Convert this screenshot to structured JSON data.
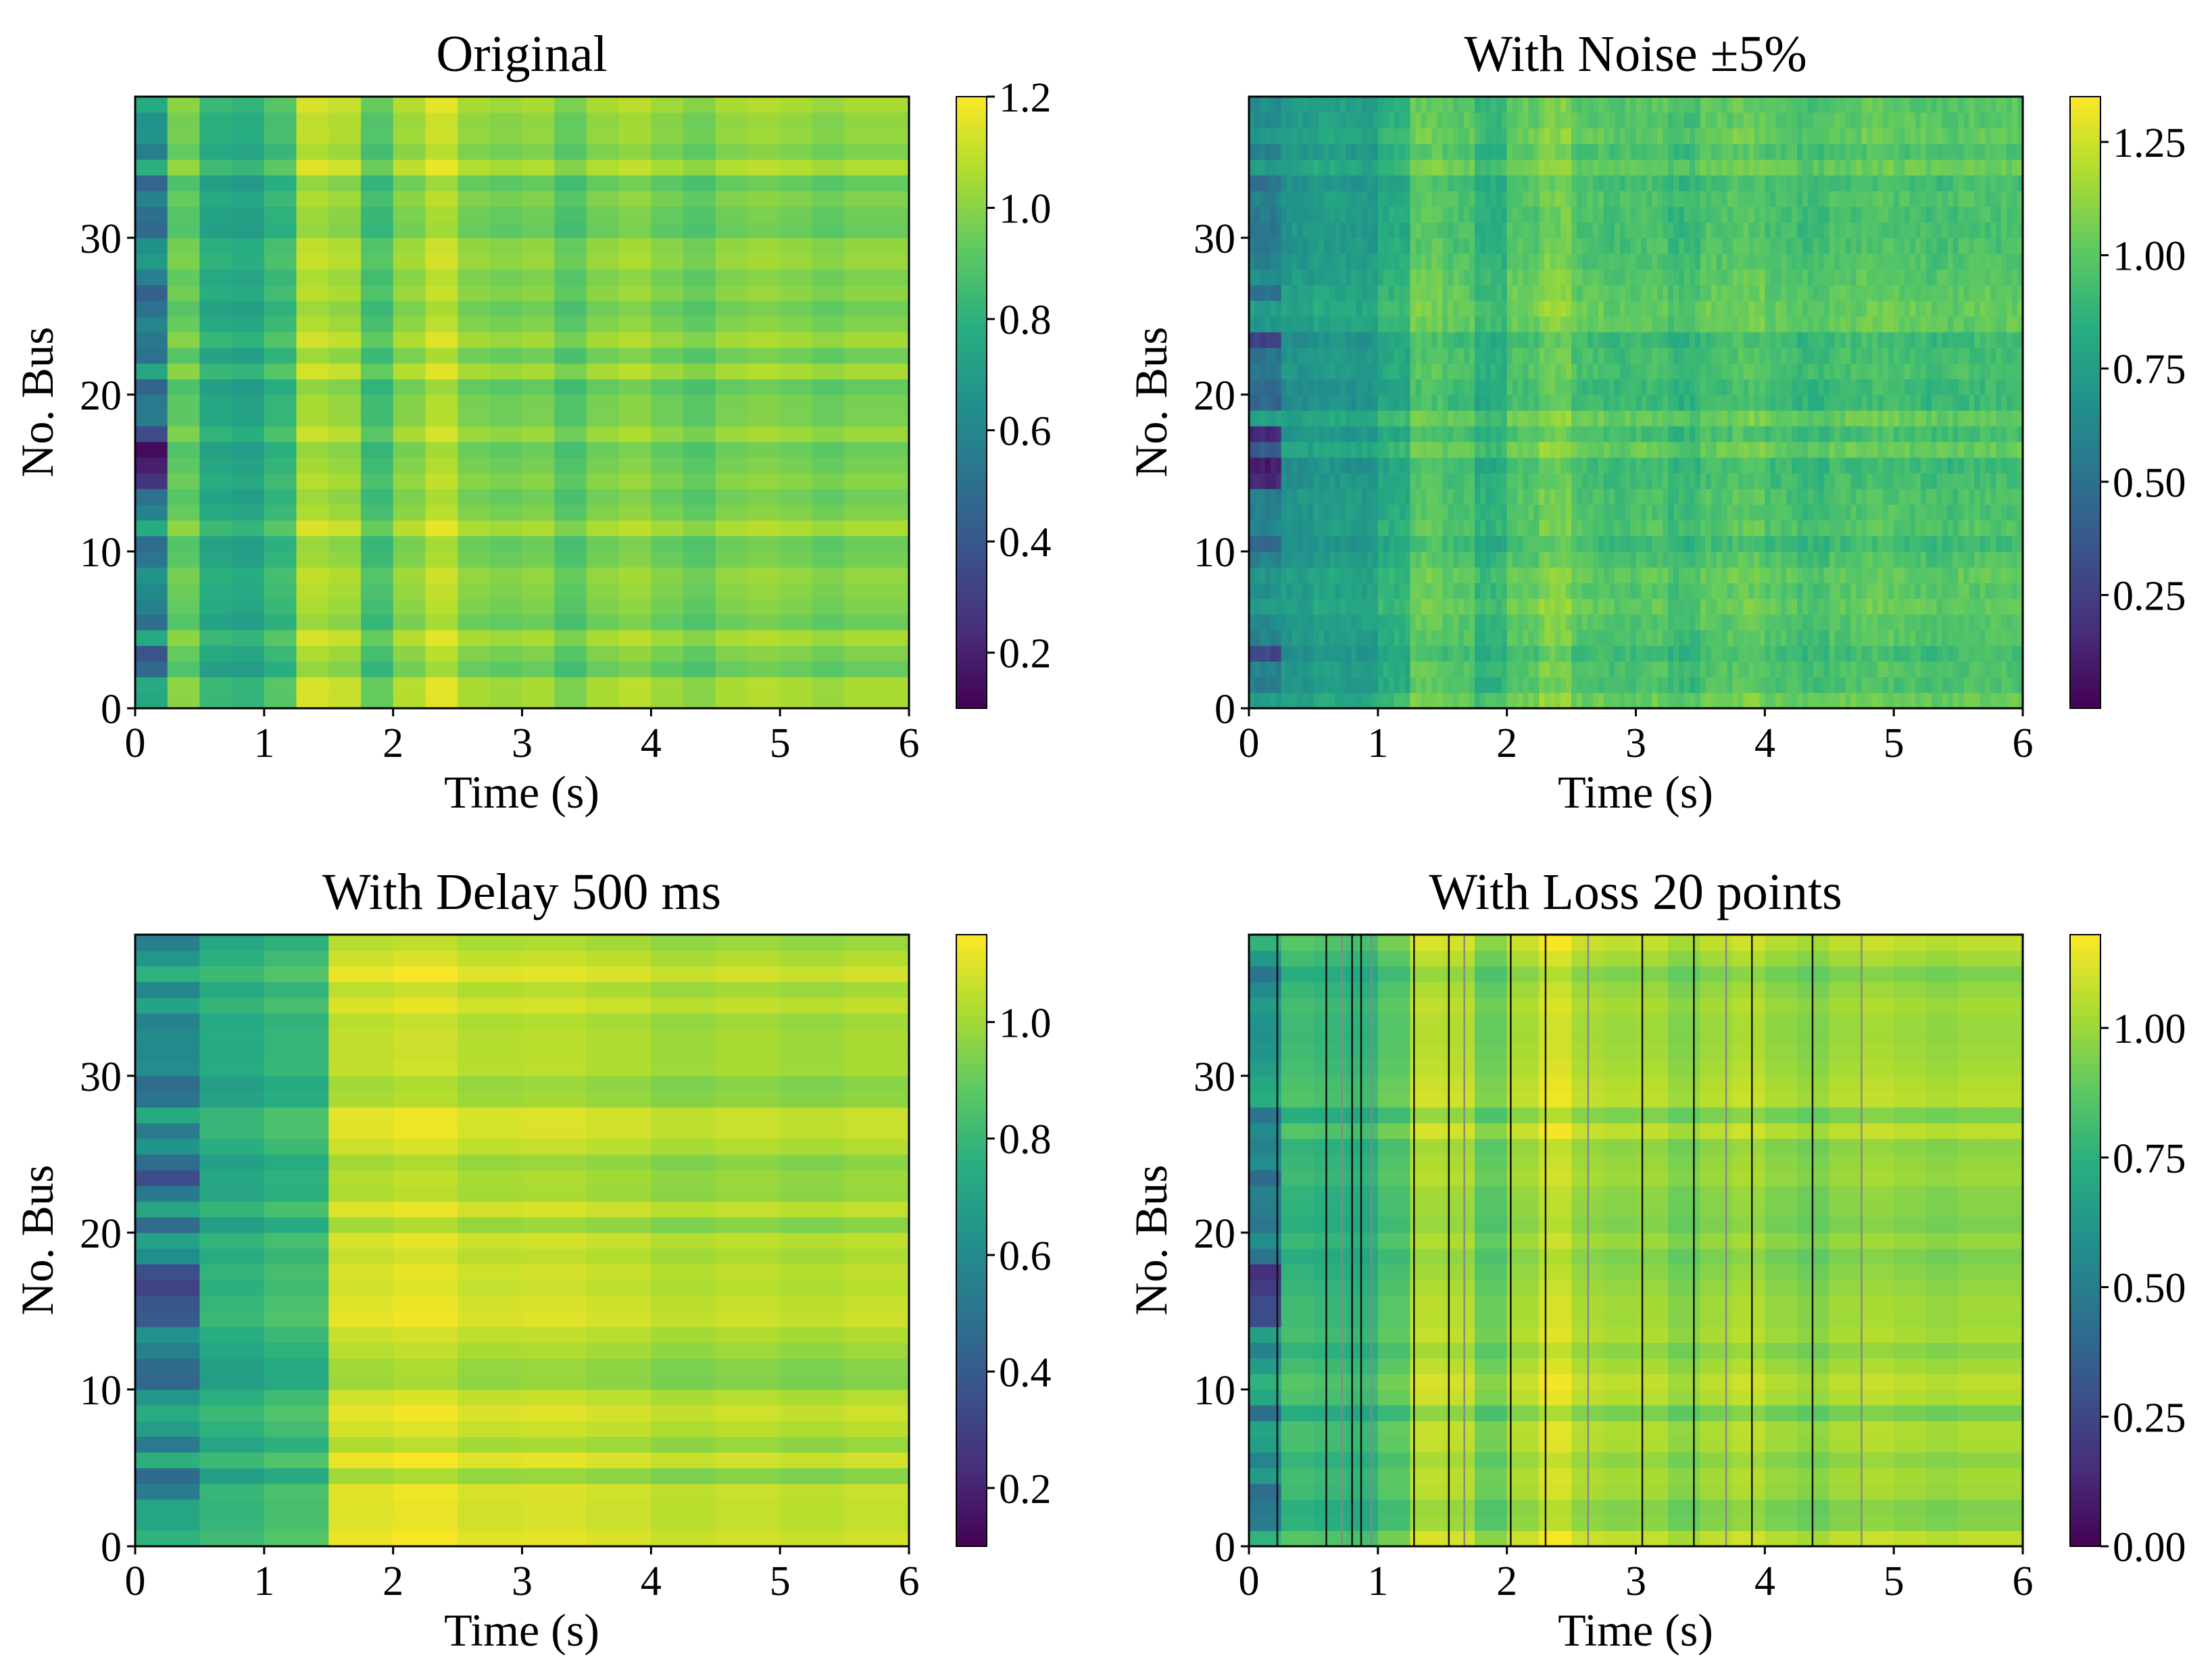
{
  "chart_data": [
    {
      "type": "heatmap",
      "title": "Original",
      "xlabel": "Time (s)",
      "ylabel": "No. Bus",
      "xlim": [
        0,
        6
      ],
      "ylim": [
        0,
        39
      ],
      "xticks": [
        "0",
        "1",
        "2",
        "3",
        "4",
        "5",
        "6"
      ],
      "yticks": [
        "0",
        "10",
        "20",
        "30"
      ],
      "colormap": "viridis",
      "color_range": [
        0.1,
        1.2
      ],
      "colorbar_ticks": [
        "0.2",
        "0.4",
        "0.6",
        "0.8",
        "1.0",
        "1.2"
      ],
      "colorbar_values": [
        0.2,
        0.4,
        0.6,
        0.8,
        1.0,
        1.2
      ],
      "times": [
        0,
        0.25,
        0.5,
        0.75,
        1.0,
        1.25,
        1.5,
        1.75,
        2.0,
        2.25,
        2.5,
        2.75,
        3.0,
        3.25,
        3.5,
        3.75,
        4.0,
        4.25,
        4.5,
        4.75,
        5.0,
        5.25,
        5.5,
        5.75
      ],
      "mean_values": [
        0.62,
        0.95,
        0.78,
        0.76,
        0.85,
        1.08,
        1.05,
        0.88,
        1.02,
        1.1,
        1.0,
        0.98,
        1.0,
        0.92,
        1.0,
        1.03,
        0.98,
        0.94,
        1.0,
        1.02,
        1.0,
        0.97,
        1.0,
        1.0
      ],
      "loss_lines": []
    },
    {
      "type": "heatmap",
      "title": "With Noise ±5%",
      "xlabel": "Time (s)",
      "ylabel": "No. Bus",
      "xlim": [
        0,
        6
      ],
      "ylim": [
        0,
        39
      ],
      "xticks": [
        "0",
        "1",
        "2",
        "3",
        "4",
        "5",
        "6"
      ],
      "yticks": [
        "0",
        "10",
        "20",
        "30"
      ],
      "colormap": "viridis",
      "color_range": [
        0.0,
        1.35
      ],
      "colorbar_ticks": [
        "0.25",
        "0.50",
        "0.75",
        "1.00",
        "1.25"
      ],
      "colorbar_values": [
        0.25,
        0.5,
        0.75,
        1.0,
        1.25
      ],
      "times": [
        0,
        0.25,
        0.5,
        0.75,
        1.0,
        1.25,
        1.5,
        1.75,
        2.0,
        2.25,
        2.5,
        2.75,
        3.0,
        3.25,
        3.5,
        3.75,
        4.0,
        4.25,
        4.5,
        4.75,
        5.0,
        5.25,
        5.5,
        5.75
      ],
      "mean_values": [
        0.62,
        0.72,
        0.76,
        0.75,
        0.85,
        1.02,
        0.98,
        0.88,
        1.0,
        1.08,
        0.98,
        0.96,
        0.98,
        0.92,
        0.99,
        1.02,
        0.97,
        0.94,
        0.98,
        1.0,
        0.98,
        0.96,
        0.98,
        0.98
      ],
      "loss_lines": []
    },
    {
      "type": "heatmap",
      "title": "With Delay 500 ms",
      "xlabel": "Time (s)",
      "ylabel": "No. Bus",
      "xlim": [
        0,
        6
      ],
      "ylim": [
        0,
        39
      ],
      "xticks": [
        "0",
        "1",
        "2",
        "3",
        "4",
        "5",
        "6"
      ],
      "yticks": [
        "0",
        "10",
        "20",
        "30"
      ],
      "colormap": "viridis",
      "color_range": [
        0.1,
        1.15
      ],
      "colorbar_ticks": [
        "0.2",
        "0.4",
        "0.6",
        "0.8",
        "1.0"
      ],
      "colorbar_values": [
        0.2,
        0.4,
        0.6,
        0.8,
        1.0
      ],
      "times": [
        0,
        0.5,
        1.0,
        1.5,
        2.0,
        2.5,
        3.0,
        3.5,
        4.0,
        4.5,
        5.0,
        5.5
      ],
      "mean_values": [
        0.62,
        0.75,
        0.8,
        1.06,
        1.08,
        1.04,
        1.05,
        1.03,
        1.0,
        1.02,
        1.0,
        1.02
      ],
      "loss_lines": []
    },
    {
      "type": "heatmap",
      "title": "With Loss 20 points",
      "xlabel": "Time (s)",
      "ylabel": "No. Bus",
      "xlim": [
        0,
        6
      ],
      "ylim": [
        0,
        39
      ],
      "xticks": [
        "0",
        "1",
        "2",
        "3",
        "4",
        "5",
        "6"
      ],
      "yticks": [
        "0",
        "10",
        "20",
        "30"
      ],
      "colormap": "viridis",
      "color_range": [
        0.0,
        1.18
      ],
      "colorbar_ticks": [
        "0.00",
        "0.25",
        "0.50",
        "0.75",
        "1.00"
      ],
      "colorbar_values": [
        0.0,
        0.25,
        0.5,
        0.75,
        1.0
      ],
      "times": [
        0,
        0.25,
        0.5,
        0.75,
        1.0,
        1.25,
        1.5,
        1.75,
        2.0,
        2.25,
        2.5,
        2.75,
        3.0,
        3.25,
        3.5,
        3.75,
        4.0,
        4.25,
        4.5,
        4.75,
        5.0,
        5.25,
        5.5,
        5.75
      ],
      "mean_values": [
        0.6,
        0.8,
        0.78,
        0.76,
        0.86,
        1.05,
        1.04,
        0.9,
        1.02,
        1.1,
        1.02,
        1.0,
        1.01,
        0.95,
        1.0,
        1.03,
        0.98,
        0.95,
        1.0,
        1.02,
        1.0,
        0.98,
        1.0,
        1.0
      ],
      "loss_lines": [
        0.22,
        0.6,
        0.72,
        0.8,
        0.87,
        0.95,
        1.28,
        1.55,
        1.67,
        2.03,
        2.3,
        2.63,
        3.05,
        3.45,
        3.7,
        3.9,
        4.37,
        4.75
      ]
    }
  ]
}
